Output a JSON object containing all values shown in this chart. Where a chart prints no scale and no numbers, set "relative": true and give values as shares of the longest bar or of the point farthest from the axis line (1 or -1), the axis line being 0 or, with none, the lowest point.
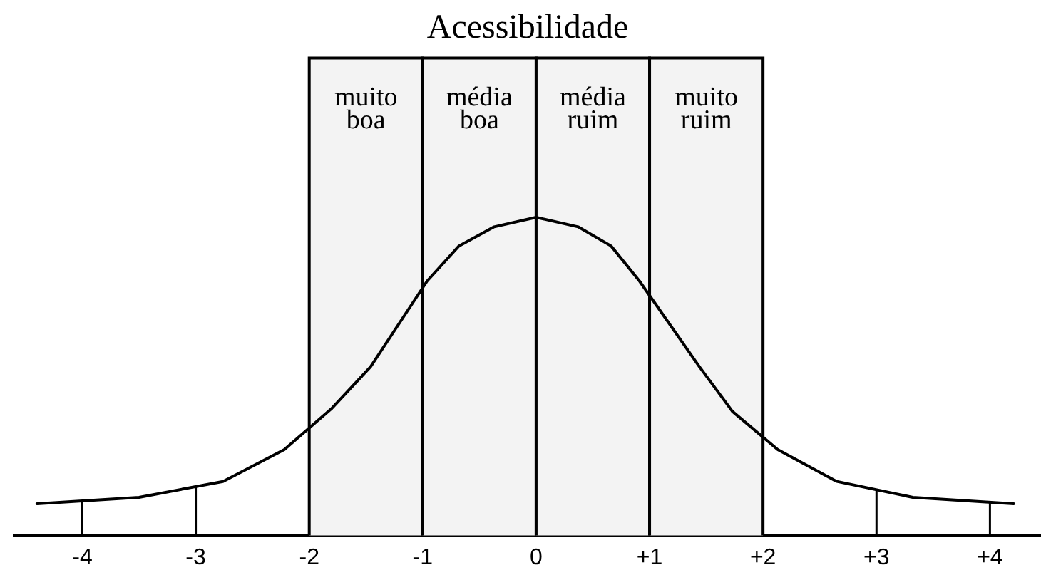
{
  "chart_data": {
    "type": "line",
    "title": "Acessibilidade",
    "relative": true,
    "x": [
      -4.4,
      -3.5,
      -2.76,
      -2.22,
      -1.8,
      -1.46,
      -0.96,
      -0.68,
      -0.37,
      0,
      0.37,
      0.66,
      0.91,
      1.44,
      1.73,
      2.13,
      2.65,
      3.32,
      4.21
    ],
    "series": [
      {
        "color": "#000000",
        "values": [
          0.1,
          0.12,
          0.17,
          0.27,
          0.4,
          0.53,
          0.8,
          0.91,
          0.97,
          1,
          0.97,
          0.91,
          0.8,
          0.53,
          0.39,
          0.27,
          0.17,
          0.12,
          0.1
        ]
      }
    ],
    "xlim": [
      -4.6,
      4.45
    ],
    "xticks": [
      -4,
      -3,
      -2,
      -1,
      0,
      {
        "value": 1,
        "label": "+1"
      },
      {
        "value": 2,
        "label": "+2"
      },
      {
        "value": 3,
        "label": "+3"
      },
      {
        "value": 4,
        "label": "+4"
      }
    ],
    "bands": [
      {
        "axis": "x",
        "from": -2,
        "to": -1,
        "label": "muito boa",
        "color": "#f3f3f3"
      },
      {
        "axis": "x",
        "from": -1,
        "to": 0,
        "label": "média boa",
        "color": "#f3f3f3"
      },
      {
        "axis": "x",
        "from": 0,
        "to": 1,
        "label": "média ruim",
        "color": "#f3f3f3"
      },
      {
        "axis": "x",
        "from": 1,
        "to": 2,
        "label": "muito ruim",
        "color": "#f3f3f3"
      }
    ],
    "ref_lines": [
      {
        "axis": "x",
        "value": -4
      },
      {
        "axis": "x",
        "value": -3
      },
      {
        "axis": "x",
        "value": 3
      },
      {
        "axis": "x",
        "value": 4
      }
    ],
    "marker": "none",
    "legend": false
  }
}
